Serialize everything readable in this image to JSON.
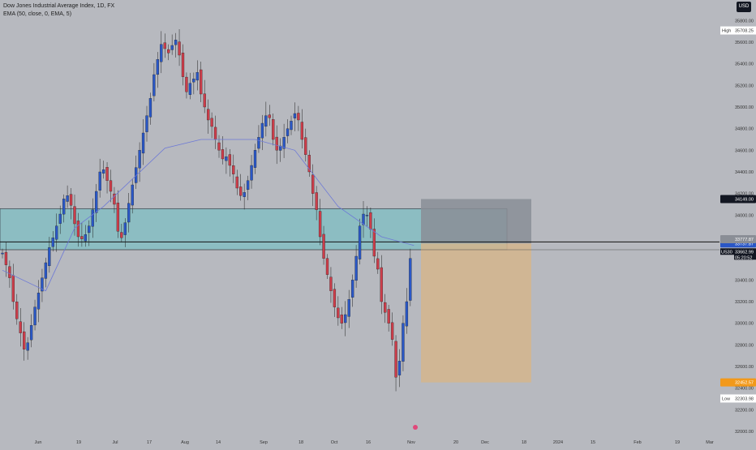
{
  "legend": {
    "title": "Dow Jones Industrial Average Index, 1D, FX",
    "indicator": "EMA (50, close, 0, EMA, 5)"
  },
  "currency": "USD",
  "colors": {
    "background": "#b7b9bf",
    "up": "#2a57c6",
    "down": "#cc3d4a",
    "ema": "#6d79d6",
    "zone": "#7dbfc3",
    "target": "#8a8e96",
    "stop": "#d5b58c",
    "symbol_tag": "#131722",
    "stop_label": "#f2991b"
  },
  "price_axis_labels": [
    "35800.00",
    "35600.00",
    "35400.00",
    "35200.00",
    "35000.00",
    "34800.00",
    "34600.00",
    "34400.00",
    "34200.00",
    "34000.00",
    "33800.00",
    "33600.00",
    "33400.00",
    "33200.00",
    "33000.00",
    "32800.00",
    "32600.00",
    "32400.00",
    "32200.00",
    "32000.00"
  ],
  "price_tags": {
    "high": {
      "label": "High",
      "value": "35708.25"
    },
    "low": {
      "label": "Low",
      "value": "32303.98"
    },
    "target": "34149.00",
    "resistance": "33752.28",
    "entry": "33737.87",
    "tag_a": "33777.87",
    "current": {
      "symbol": "US30",
      "value": "33662.99",
      "countdown": "05:20:52"
    },
    "stop": "32452.57"
  },
  "time_axis_labels": [
    "Jun",
    "19",
    "Jul",
    "17",
    "Aug",
    "14",
    "Sep",
    "18",
    "Oct",
    "16",
    "Nov",
    "20",
    "Dec",
    "18",
    "2024",
    "15",
    "Feb",
    "19",
    "Mar"
  ],
  "chart_data": {
    "type": "candlestick",
    "title": "Dow Jones Industrial Average Index, 1D, FX",
    "ylim": [
      31940,
      35990
    ],
    "y_ticks": [
      32000,
      32200,
      32400,
      32600,
      32800,
      33000,
      33200,
      33400,
      33600,
      33800,
      34000,
      34200,
      34400,
      34600,
      34800,
      35000,
      35200,
      35400,
      35600,
      35800
    ],
    "x_labels": [
      "Jun",
      "19",
      "Jul",
      "17",
      "Aug",
      "14",
      "Sep",
      "18",
      "Oct",
      "16",
      "Nov",
      "20",
      "Dec",
      "18",
      "2024",
      "15",
      "Feb",
      "19",
      "Mar"
    ],
    "closes": [
      33650,
      33540,
      33420,
      33200,
      33040,
      32910,
      32760,
      32820,
      32980,
      33150,
      33280,
      33420,
      33560,
      33700,
      33790,
      33900,
      34010,
      34150,
      34180,
      34090,
      33920,
      33800,
      33780,
      33820,
      33900,
      34050,
      34220,
      34400,
      34420,
      34320,
      34220,
      34100,
      33850,
      33790,
      33930,
      34110,
      34280,
      34440,
      34600,
      34760,
      34920,
      35080,
      35300,
      35440,
      35580,
      35540,
      35500,
      35570,
      35620,
      35480,
      35280,
      35140,
      35220,
      35260,
      35320,
      35120,
      35000,
      34880,
      34820,
      34700,
      34600,
      34520,
      34540,
      34460,
      34380,
      34250,
      34180,
      34210,
      34320,
      34460,
      34600,
      34720,
      34850,
      34920,
      34900,
      34700,
      34600,
      34640,
      34720,
      34800,
      34870,
      34940,
      34880,
      34700,
      34560,
      34400,
      34200,
      34050,
      33800,
      33600,
      33450,
      33300,
      33150,
      33050,
      33000,
      33080,
      33220,
      33400,
      33620,
      33900,
      34010,
      34000,
      33870,
      33620,
      33500,
      33200,
      33100,
      33000,
      32850,
      32500,
      32650,
      33000,
      33200,
      33600
    ],
    "ema_50": {
      "start": 33490,
      "points": [
        [
          0,
          33490
        ],
        [
          12,
          33300
        ],
        [
          20,
          33880
        ],
        [
          28,
          34080
        ],
        [
          45,
          34620
        ],
        [
          55,
          34700
        ],
        [
          70,
          34700
        ],
        [
          81,
          34600
        ],
        [
          93,
          34080
        ],
        [
          105,
          33800
        ],
        [
          114,
          33720
        ]
      ]
    },
    "high_marker": 35708.25,
    "low_marker": 32303.98,
    "current_price": 33662.99,
    "resistance_line": 33752.28,
    "support_line": 33680,
    "demand_zone": [
      33680,
      34060
    ],
    "position": {
      "entry": 33737.87,
      "target": 34149.0,
      "stop": 32452.57
    }
  }
}
